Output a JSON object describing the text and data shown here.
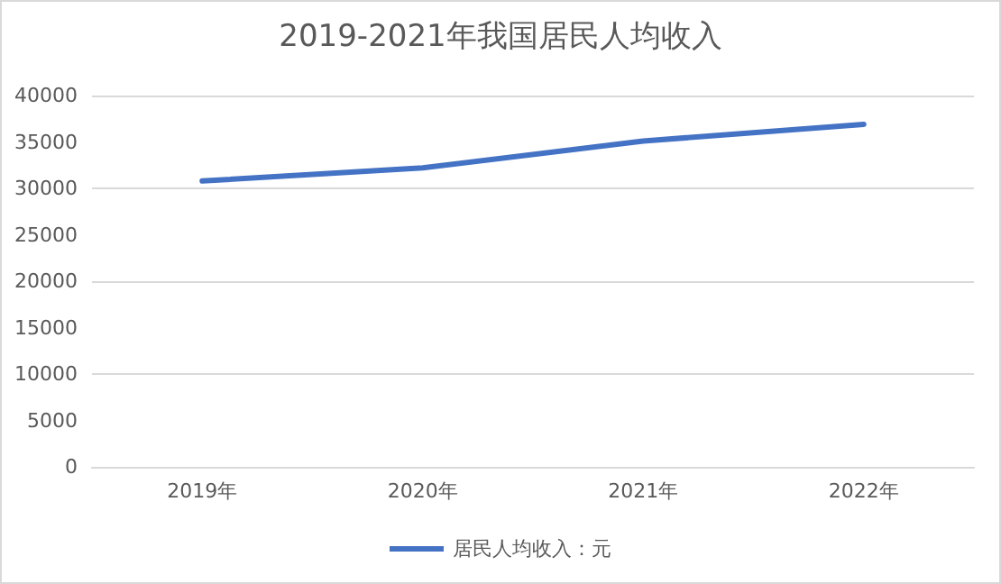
{
  "chart_data": {
    "type": "line",
    "title": "2019-2021年我国居民人均收入",
    "categories": [
      "2019年",
      "2020年",
      "2021年",
      "2022年"
    ],
    "series": [
      {
        "name": "居民人均收入：元",
        "color": "#4472c4",
        "values": [
          30800,
          32200,
          35100,
          36900
        ]
      }
    ],
    "ylim": [
      0,
      40000
    ],
    "yticks": [
      0,
      5000,
      10000,
      15000,
      20000,
      25000,
      30000,
      35000,
      40000
    ],
    "grid": "y",
    "legend": "bottom",
    "marker": "none"
  }
}
